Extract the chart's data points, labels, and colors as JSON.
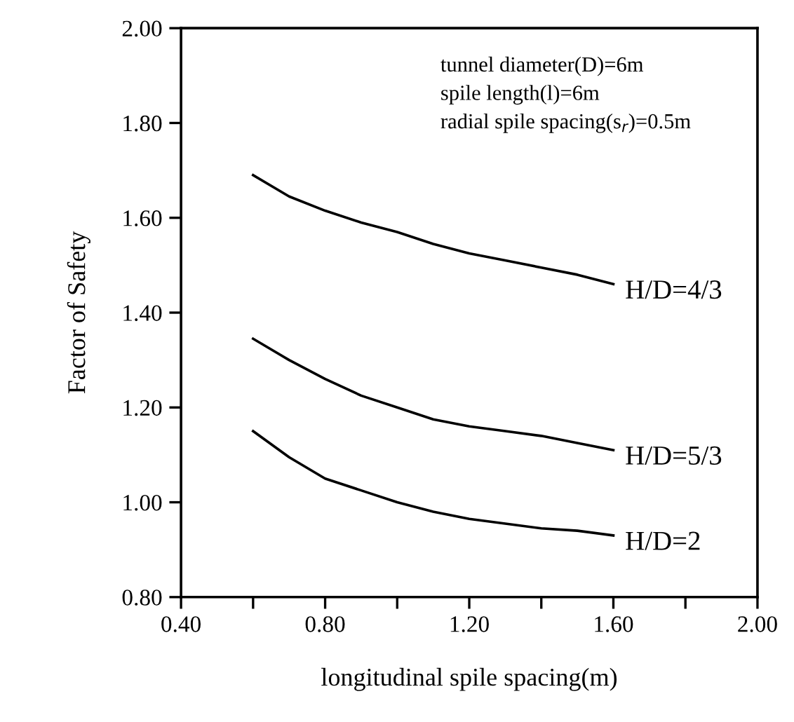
{
  "chart_data": {
    "type": "line",
    "xlabel": "longitudinal spile spacing(m)",
    "ylabel": "Factor of Safety",
    "x": [
      0.6,
      0.7,
      0.8,
      0.9,
      1.0,
      1.1,
      1.2,
      1.3,
      1.4,
      1.5,
      1.6
    ],
    "series": [
      {
        "name": "H/D=4/3",
        "color": "#000000",
        "values": [
          1.69,
          1.645,
          1.615,
          1.59,
          1.57,
          1.545,
          1.525,
          1.51,
          1.495,
          1.48,
          1.46
        ]
      },
      {
        "name": "H/D=5/3",
        "color": "#000000",
        "values": [
          1.345,
          1.3,
          1.26,
          1.225,
          1.2,
          1.175,
          1.16,
          1.15,
          1.14,
          1.125,
          1.11
        ]
      },
      {
        "name": "H/D=2",
        "color": "#000000",
        "values": [
          1.15,
          1.095,
          1.05,
          1.025,
          1.0,
          0.98,
          0.965,
          0.955,
          0.945,
          0.94,
          0.93
        ]
      }
    ],
    "annotations": [
      "tunnel diameter(D)=6m",
      "spile length(l)=6m",
      "radial spile spacing(s$_{r}$)=0.5m"
    ],
    "xlim": [
      0.4,
      2.0
    ],
    "ylim": [
      0.8,
      2.0
    ],
    "xticks": [
      {
        "value": 0.4,
        "label": "0.40"
      },
      {
        "value": 0.6,
        "label": null
      },
      {
        "value": 0.8,
        "label": "0.80"
      },
      {
        "value": 1.0,
        "label": null
      },
      {
        "value": 1.2,
        "label": "1.20"
      },
      {
        "value": 1.4,
        "label": null
      },
      {
        "value": 1.6,
        "label": "1.60"
      },
      {
        "value": 1.8,
        "label": null
      },
      {
        "value": 2.0,
        "label": "2.00"
      }
    ],
    "yticks": [
      {
        "value": 0.8,
        "label": "0.80"
      },
      {
        "value": 1.0,
        "label": "1.00"
      },
      {
        "value": 1.2,
        "label": "1.20"
      },
      {
        "value": 1.4,
        "label": "1.40"
      },
      {
        "value": 1.6,
        "label": "1.60"
      },
      {
        "value": 1.8,
        "label": "1.80"
      },
      {
        "value": 2.0,
        "label": "2.00"
      }
    ],
    "grid": false,
    "legend": false,
    "marker": "none",
    "line_style": "solid"
  }
}
